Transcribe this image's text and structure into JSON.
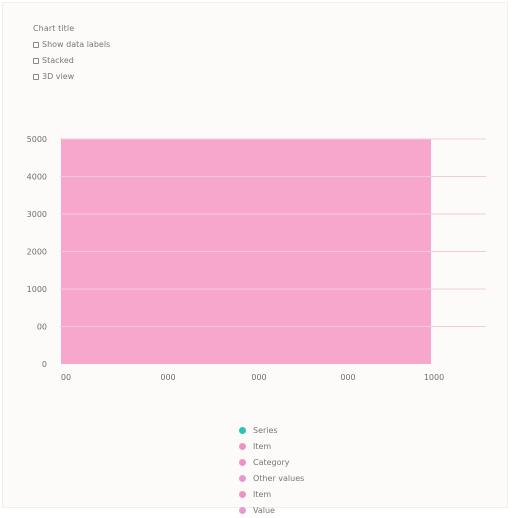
{
  "header": {
    "title": "Chart title",
    "options": [
      "Show data labels",
      "Stacked",
      "3D view"
    ]
  },
  "chart_data": {
    "type": "bar",
    "categories": [
      "00"
    ],
    "values": [
      5000
    ],
    "x_ticks": [
      "00",
      "000",
      "000",
      "000",
      "1000"
    ],
    "y_ticks": [
      "0",
      "00",
      "1000",
      "2000",
      "3000",
      "4000",
      "5000"
    ],
    "ylim": [
      0,
      5000
    ],
    "grid": true,
    "bar_color": "#f7a1c9",
    "legend_position": "bottom",
    "legend": [
      {
        "label": "Series",
        "color": "#2fc1b3"
      },
      {
        "label": "Item",
        "color": "#ef93c0"
      },
      {
        "label": "Category",
        "color": "#ef93c0"
      },
      {
        "label": "Other values",
        "color": "#e79ad0"
      },
      {
        "label": "Item",
        "color": "#ef93c0"
      },
      {
        "label": "Value",
        "color": "#e79ad0"
      }
    ]
  }
}
